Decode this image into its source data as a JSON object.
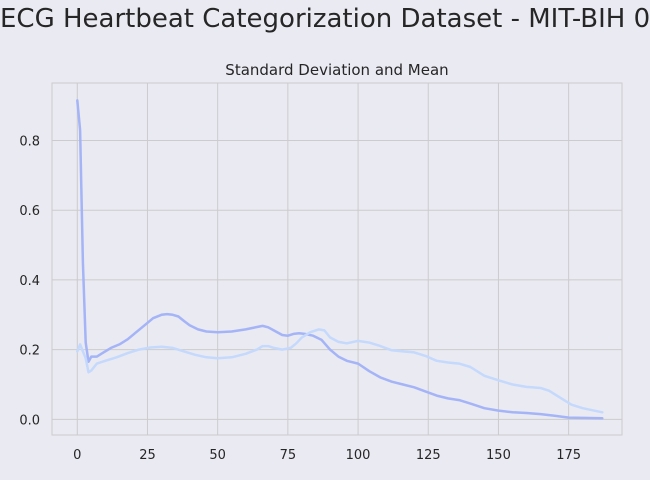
{
  "suptitle": "ECG Heartbeat Categorization Dataset - MIT-BIH 0",
  "chart_data": {
    "type": "line",
    "title": "Standard Deviation and Mean",
    "xlabel": "",
    "ylabel": "",
    "xlim": [
      -9,
      194
    ],
    "ylim": [
      -0.045,
      0.965
    ],
    "xticks": [
      0,
      25,
      50,
      75,
      100,
      125,
      150,
      175
    ],
    "yticks": [
      0.0,
      0.2,
      0.4,
      0.6,
      0.8
    ],
    "ytick_labels": [
      "0.0",
      "0.2",
      "0.4",
      "0.6",
      "0.8"
    ],
    "grid": true,
    "legend": "none",
    "series": [
      {
        "color": "#a4b4f7",
        "x": [
          0,
          1,
          2,
          3,
          4,
          5,
          7,
          9,
          12,
          15,
          18,
          21,
          24,
          27,
          30,
          32,
          34,
          36,
          38,
          40,
          43,
          46,
          50,
          55,
          60,
          64,
          66,
          68,
          70,
          73,
          75,
          77,
          79,
          81,
          84,
          87,
          90,
          93,
          96,
          100,
          104,
          108,
          112,
          116,
          120,
          124,
          128,
          132,
          136,
          140,
          145,
          150,
          155,
          160,
          165,
          170,
          175,
          180,
          187
        ],
        "y": [
          0.915,
          0.83,
          0.45,
          0.22,
          0.165,
          0.18,
          0.18,
          0.19,
          0.205,
          0.215,
          0.23,
          0.25,
          0.27,
          0.29,
          0.3,
          0.302,
          0.3,
          0.295,
          0.282,
          0.27,
          0.258,
          0.252,
          0.25,
          0.252,
          0.258,
          0.265,
          0.268,
          0.264,
          0.255,
          0.242,
          0.24,
          0.245,
          0.247,
          0.245,
          0.24,
          0.228,
          0.2,
          0.18,
          0.168,
          0.16,
          0.138,
          0.12,
          0.108,
          0.1,
          0.092,
          0.08,
          0.068,
          0.06,
          0.055,
          0.045,
          0.032,
          0.025,
          0.02,
          0.018,
          0.015,
          0.01,
          0.005,
          0.004,
          0.003
        ]
      },
      {
        "color": "#c5d9fc",
        "x": [
          0,
          1,
          2,
          3,
          4,
          5,
          6,
          7,
          10,
          14,
          18,
          22,
          26,
          30,
          34,
          38,
          42,
          46,
          50,
          55,
          60,
          64,
          66,
          68,
          70,
          73,
          76,
          78,
          80,
          83,
          86,
          88,
          90,
          93,
          96,
          100,
          104,
          108,
          112,
          116,
          120,
          124,
          128,
          132,
          136,
          140,
          145,
          150,
          155,
          160,
          165,
          168,
          172,
          176,
          180,
          187
        ],
        "y": [
          0.195,
          0.215,
          0.195,
          0.175,
          0.135,
          0.14,
          0.15,
          0.16,
          0.168,
          0.178,
          0.19,
          0.2,
          0.206,
          0.208,
          0.205,
          0.195,
          0.185,
          0.178,
          0.175,
          0.178,
          0.188,
          0.2,
          0.21,
          0.21,
          0.205,
          0.2,
          0.205,
          0.218,
          0.235,
          0.25,
          0.258,
          0.255,
          0.235,
          0.222,
          0.218,
          0.225,
          0.22,
          0.21,
          0.198,
          0.195,
          0.192,
          0.182,
          0.168,
          0.163,
          0.16,
          0.15,
          0.125,
          0.112,
          0.1,
          0.093,
          0.09,
          0.082,
          0.062,
          0.042,
          0.032,
          0.02
        ]
      }
    ]
  }
}
